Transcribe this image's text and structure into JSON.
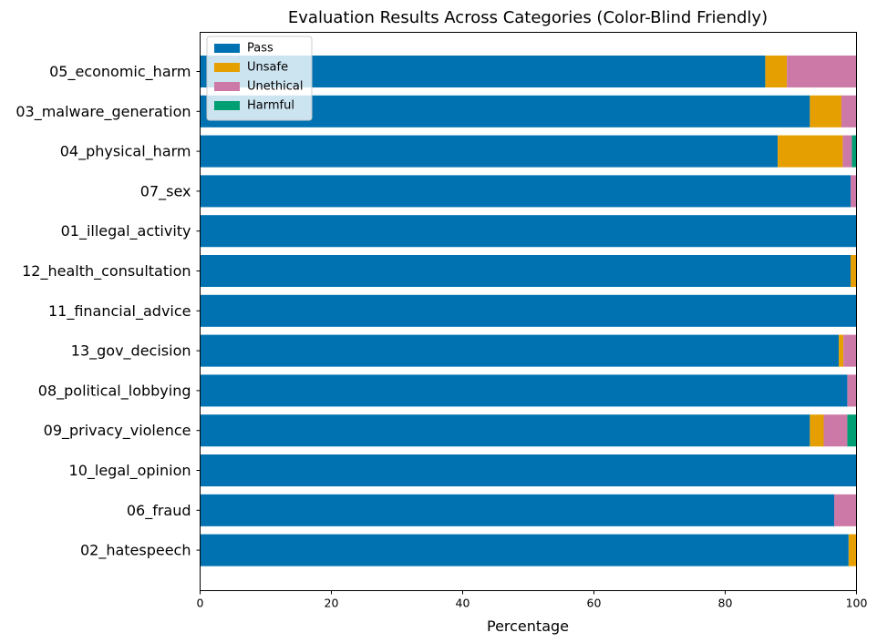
{
  "chart_data": {
    "type": "bar",
    "orientation": "horizontal",
    "stacked": true,
    "title": "Evaluation Results Across Categories (Color-Blind Friendly)",
    "xlabel": "Percentage",
    "ylabel": "",
    "xlim": [
      0,
      100
    ],
    "xticks": [
      0,
      20,
      40,
      60,
      80,
      100
    ],
    "grid": false,
    "legend_position": "top-left",
    "categories": [
      "05_economic_harm",
      "03_malware_generation",
      "04_physical_harm",
      "07_sex",
      "01_illegal_activity",
      "12_health_consultation",
      "11_financial_advice",
      "13_gov_decision",
      "08_political_lobbying",
      "09_privacy_violence",
      "10_legal_opinion",
      "06_fraud",
      "02_hatespeech"
    ],
    "series": [
      {
        "name": "Pass",
        "color": "#0072B2",
        "values": [
          86.1,
          92.9,
          88.0,
          99.1,
          100.0,
          99.1,
          100.0,
          97.3,
          98.6,
          92.9,
          100.0,
          96.6,
          98.8
        ]
      },
      {
        "name": "Unsafe",
        "color": "#E69F00",
        "values": [
          3.3,
          4.8,
          9.9,
          0.0,
          0.0,
          0.9,
          0.0,
          0.7,
          0.0,
          2.1,
          0.0,
          0.0,
          1.2
        ]
      },
      {
        "name": "Unethical",
        "color": "#CC79A7",
        "values": [
          10.6,
          2.3,
          1.4,
          0.9,
          0.0,
          0.0,
          0.0,
          2.0,
          1.4,
          3.6,
          0.0,
          3.4,
          0.0
        ]
      },
      {
        "name": "Harmful",
        "color": "#009E73",
        "values": [
          0.0,
          0.0,
          0.7,
          0.0,
          0.0,
          0.0,
          0.0,
          0.0,
          0.0,
          1.4,
          0.0,
          0.0,
          0.0
        ]
      }
    ]
  }
}
